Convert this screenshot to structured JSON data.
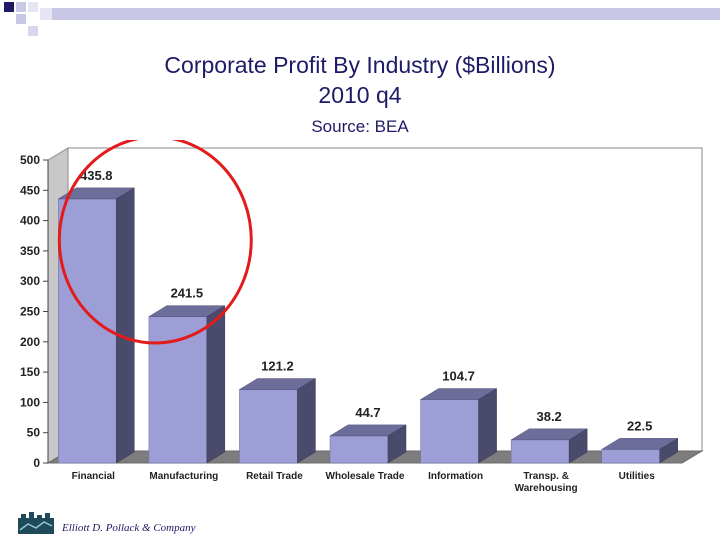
{
  "slide": {
    "title_line1": "Corporate Profit By Industry ($Billions)",
    "title_line2": "2010 q4",
    "source": "Source: BEA",
    "footer": "Elliott D. Pollack & Company",
    "accent_color": "#1f1a66",
    "highlight_color": "#e31b1b"
  },
  "chart_data": {
    "type": "bar",
    "title": "Corporate Profit By Industry ($Billions)",
    "subtitle": "2010 q4",
    "categories": [
      "Financial",
      "Manufacturing",
      "Retail Trade",
      "Wholesale Trade",
      "Information",
      "Transp. & Warehousing",
      "Utilities"
    ],
    "category_lines": [
      [
        "Financial"
      ],
      [
        "Manufacturing"
      ],
      [
        "Retail Trade"
      ],
      [
        "Wholesale Trade"
      ],
      [
        "Information"
      ],
      [
        "Transp. &",
        "Warehousing"
      ],
      [
        "Utilities"
      ]
    ],
    "values": [
      435.8,
      241.5,
      121.2,
      44.7,
      104.7,
      38.2,
      22.5
    ],
    "data_labels": [
      "435.8",
      "241.5",
      "121.2",
      "44.7",
      "104.7",
      "38.2",
      "22.5"
    ],
    "yticks": [
      0,
      50,
      100,
      150,
      200,
      250,
      300,
      350,
      400,
      450,
      500
    ],
    "ylim": [
      0,
      500
    ],
    "xlabel": "",
    "ylabel": "",
    "bar_color": "#9e9ed6",
    "highlighted_category": "Financial"
  }
}
